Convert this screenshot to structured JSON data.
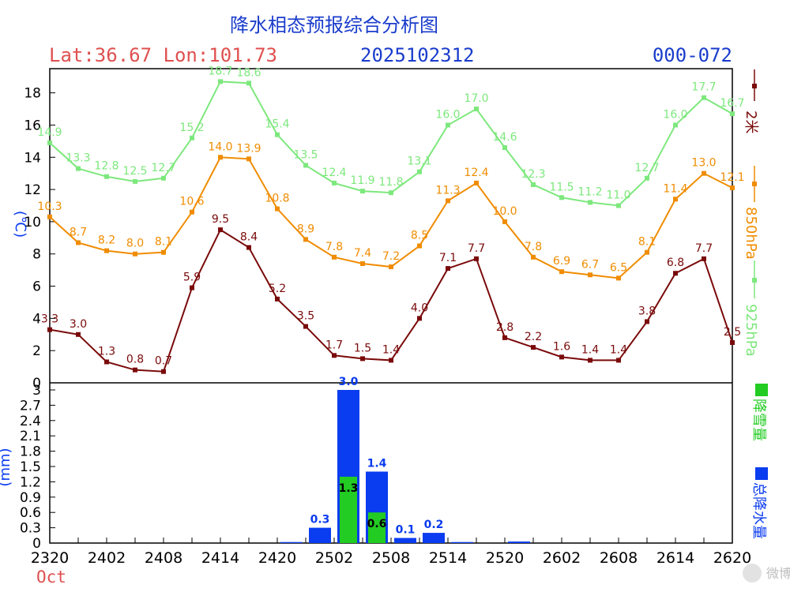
{
  "header": {
    "title": "降水相态预报综合分析图",
    "latlon": "Lat:36.67 Lon:101.73",
    "init_time": "2025102312",
    "forecast_range": "000-072"
  },
  "x_axis": {
    "tick_labels": [
      "2320",
      "2402",
      "2408",
      "2414",
      "2420",
      "2502",
      "2508",
      "2514",
      "2520",
      "2602",
      "2608",
      "2614",
      "2620"
    ],
    "month_label": "Oct"
  },
  "upper_panel": {
    "ylabel": "(℃)",
    "ylim": [
      0,
      19.5
    ],
    "yticks": [
      0,
      2,
      4,
      6,
      8,
      10,
      12,
      14,
      16,
      18
    ]
  },
  "lower_panel": {
    "ylabel": "(mm)",
    "ylim": [
      0,
      3
    ],
    "yticks": [
      "0",
      "0.3",
      "0.6",
      "0.9",
      "1.2",
      "1.5",
      "1.8",
      "2.1",
      "2.4",
      "2.7",
      "3"
    ]
  },
  "legend": {
    "t2m": "2米",
    "t850": "850hPa",
    "t925": "925hPa",
    "snow": "降雪量",
    "total": "总降水量"
  },
  "colors": {
    "t2m": "#7a0a0a",
    "t850": "#f08c00",
    "t925": "#7de87d",
    "snow": "#22cc22",
    "total": "#0a3cf0",
    "title": "#1a3ccc",
    "latlon": "#e05050"
  },
  "watermark": "微博",
  "chart_data": [
    {
      "type": "line",
      "title": "降水相态预报综合分析图",
      "ylabel": "(℃)",
      "x": [
        "2320",
        "2323",
        "2402",
        "2405",
        "2408",
        "2411",
        "2414",
        "2417",
        "2420",
        "2423",
        "2502",
        "2505",
        "2508",
        "2511",
        "2514",
        "2517",
        "2520",
        "2523",
        "2602",
        "2605",
        "2608",
        "2611",
        "2614",
        "2617",
        "2620"
      ],
      "series": [
        {
          "name": "2米",
          "values": [
            3.3,
            3.0,
            1.3,
            0.8,
            0.7,
            5.9,
            9.5,
            8.4,
            5.2,
            3.5,
            1.7,
            1.5,
            1.4,
            4.0,
            7.1,
            7.7,
            2.8,
            2.2,
            1.6,
            1.4,
            1.4,
            3.8,
            6.8,
            7.7,
            2.5
          ]
        },
        {
          "name": "850hPa",
          "values": [
            10.3,
            8.7,
            8.2,
            8.0,
            8.1,
            10.6,
            14.0,
            13.9,
            10.8,
            8.9,
            7.8,
            7.4,
            7.2,
            8.5,
            11.3,
            12.4,
            10.0,
            7.8,
            6.9,
            6.7,
            6.5,
            8.1,
            11.4,
            13.0,
            12.1
          ]
        },
        {
          "name": "925hPa",
          "values": [
            14.9,
            13.3,
            12.8,
            12.5,
            12.7,
            15.2,
            18.7,
            18.6,
            15.4,
            13.5,
            12.4,
            11.9,
            11.8,
            13.1,
            16.0,
            17.0,
            14.6,
            12.3,
            11.5,
            11.2,
            11.0,
            12.7,
            16.0,
            17.7,
            16.7
          ]
        }
      ],
      "ylim": [
        0,
        19.5
      ]
    },
    {
      "type": "bar",
      "ylabel": "(mm)",
      "x": [
        "2320",
        "2323",
        "2402",
        "2405",
        "2408",
        "2411",
        "2414",
        "2417",
        "2420",
        "2423",
        "2502",
        "2505",
        "2508",
        "2511",
        "2514",
        "2517",
        "2520",
        "2523",
        "2602",
        "2605",
        "2608",
        "2611",
        "2614",
        "2617"
      ],
      "series": [
        {
          "name": "总降水量",
          "values": [
            0,
            0,
            0,
            0,
            0,
            0,
            0,
            0,
            0.02,
            0.3,
            3.0,
            1.4,
            0.1,
            0.2,
            0.02,
            0,
            0.03,
            0,
            0,
            0,
            0,
            0,
            0,
            0
          ],
          "labels": [
            "",
            "",
            "",
            "",
            "",
            "",
            "",
            "",
            "",
            "0.3",
            "3.0",
            "1.4",
            "0.1",
            "0.2",
            "",
            "",
            "",
            "",
            "",
            "",
            "",
            "",
            "",
            ""
          ]
        },
        {
          "name": "降雪量",
          "values": [
            0,
            0,
            0,
            0,
            0,
            0,
            0,
            0,
            0,
            0,
            1.3,
            0.6,
            0,
            0,
            0,
            0,
            0,
            0,
            0,
            0,
            0,
            0,
            0,
            0
          ],
          "labels": [
            "",
            "",
            "",
            "",
            "",
            "",
            "",
            "",
            "",
            "",
            "1.3",
            "0.6",
            "",
            "",
            "",
            "",
            "",
            "",
            "",
            "",
            "",
            "",
            "",
            ""
          ]
        }
      ],
      "ylim": [
        0,
        3
      ]
    }
  ]
}
